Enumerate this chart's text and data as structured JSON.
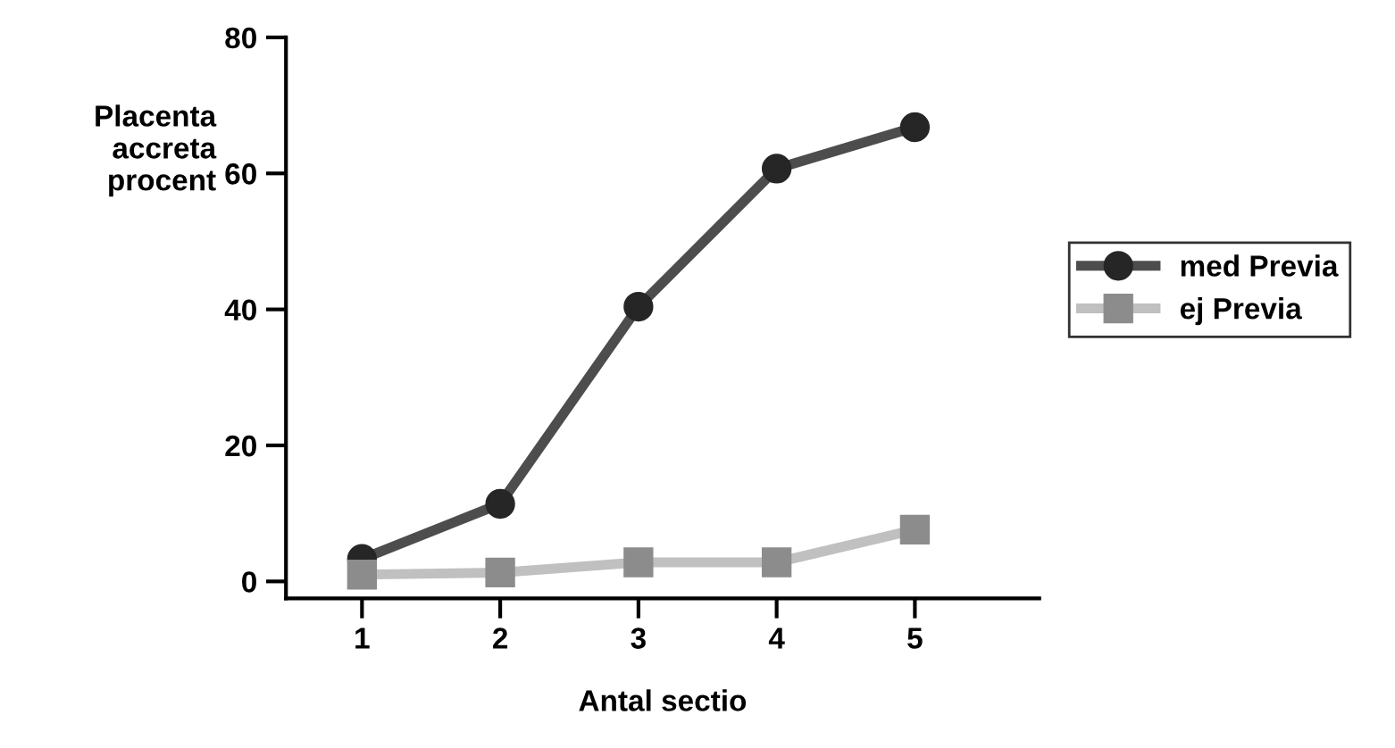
{
  "chart_data": {
    "type": "line",
    "xlabel": "Antal sectio",
    "ylabel": "Placenta\naccreta\nprocent",
    "x": [
      1,
      2,
      3,
      4,
      5
    ],
    "series": [
      {
        "name": "med Previa",
        "color": "#4d4d4d",
        "marker": "circle",
        "values": [
          3.3,
          11.4,
          40.4,
          60.7,
          66.8
        ]
      },
      {
        "name": "ej Previa",
        "color": "#c0c0c0",
        "marker": "square",
        "values": [
          1.0,
          1.3,
          2.8,
          2.8,
          7.6
        ]
      }
    ],
    "xlim": [
      0.45,
      5.9
    ],
    "xticks": [
      1,
      2,
      3,
      4,
      5
    ],
    "ylim": [
      -2.5,
      80
    ],
    "yticks": [
      0,
      20,
      40,
      60,
      80
    ],
    "grid": false,
    "legend": "right",
    "line_style": "solid"
  }
}
